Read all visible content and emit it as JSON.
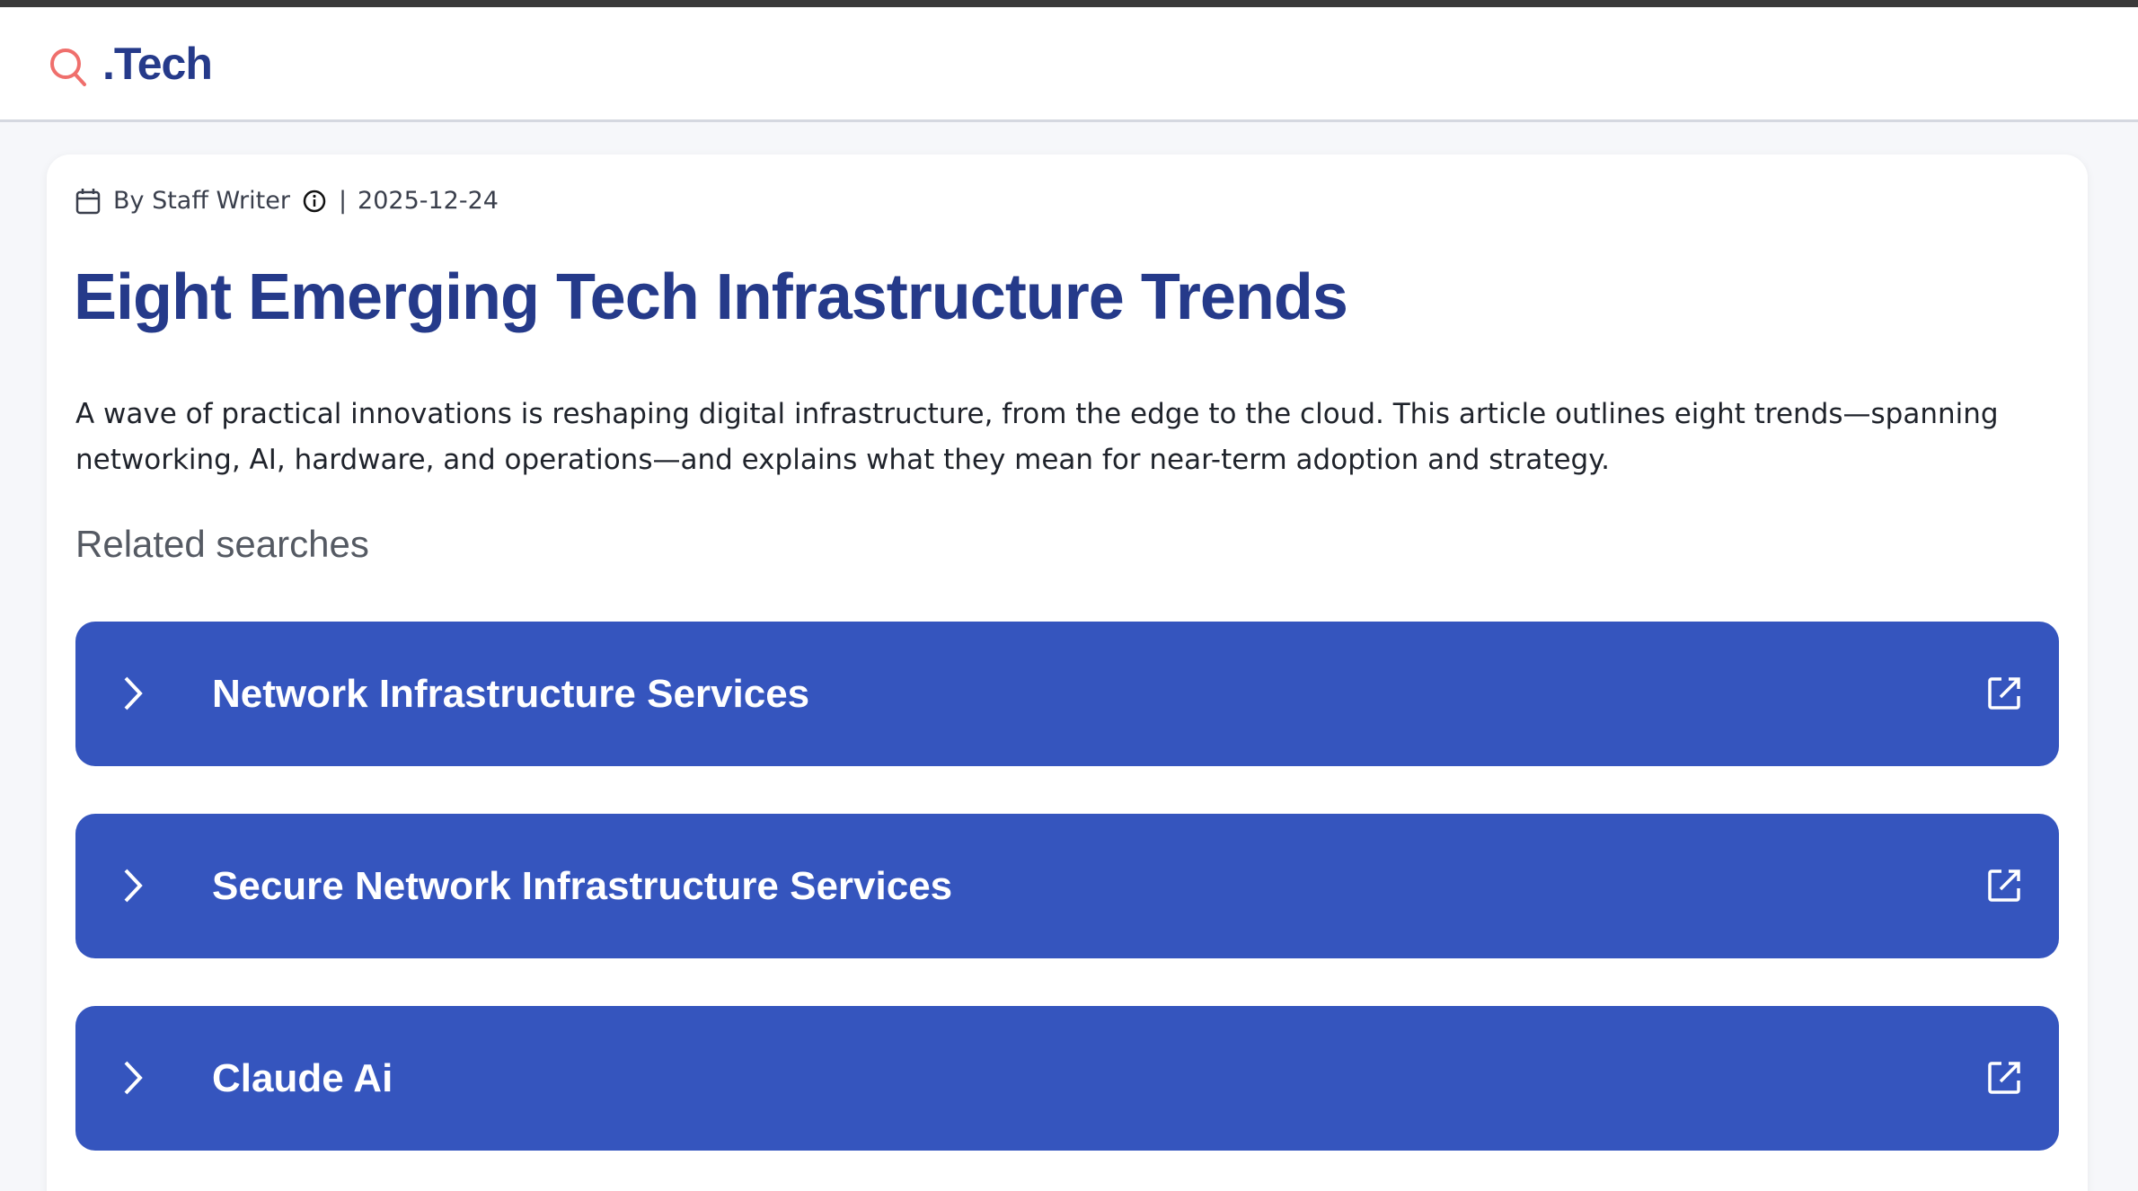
{
  "header": {
    "logo_text": ".Tech",
    "logo_icon": "search-icon",
    "accent": "#ef6f6c"
  },
  "article": {
    "author": "By Staff Writer",
    "separator": "|",
    "date": "2025-12-24",
    "title": "Eight Emerging Tech Infrastructure Trends",
    "description": "A wave of practical innovations is reshaping digital infrastructure, from the edge to the cloud. This article outlines eight trends—spanning networking, AI, hardware, and operations—and explains what they mean for near-term adoption and strategy."
  },
  "related": {
    "heading": "Related searches",
    "button_color": "#3555be",
    "items": [
      {
        "label": "Network Infrastructure Services"
      },
      {
        "label": "Secure Network Infrastructure Services"
      },
      {
        "label": "Claude Ai"
      }
    ]
  }
}
